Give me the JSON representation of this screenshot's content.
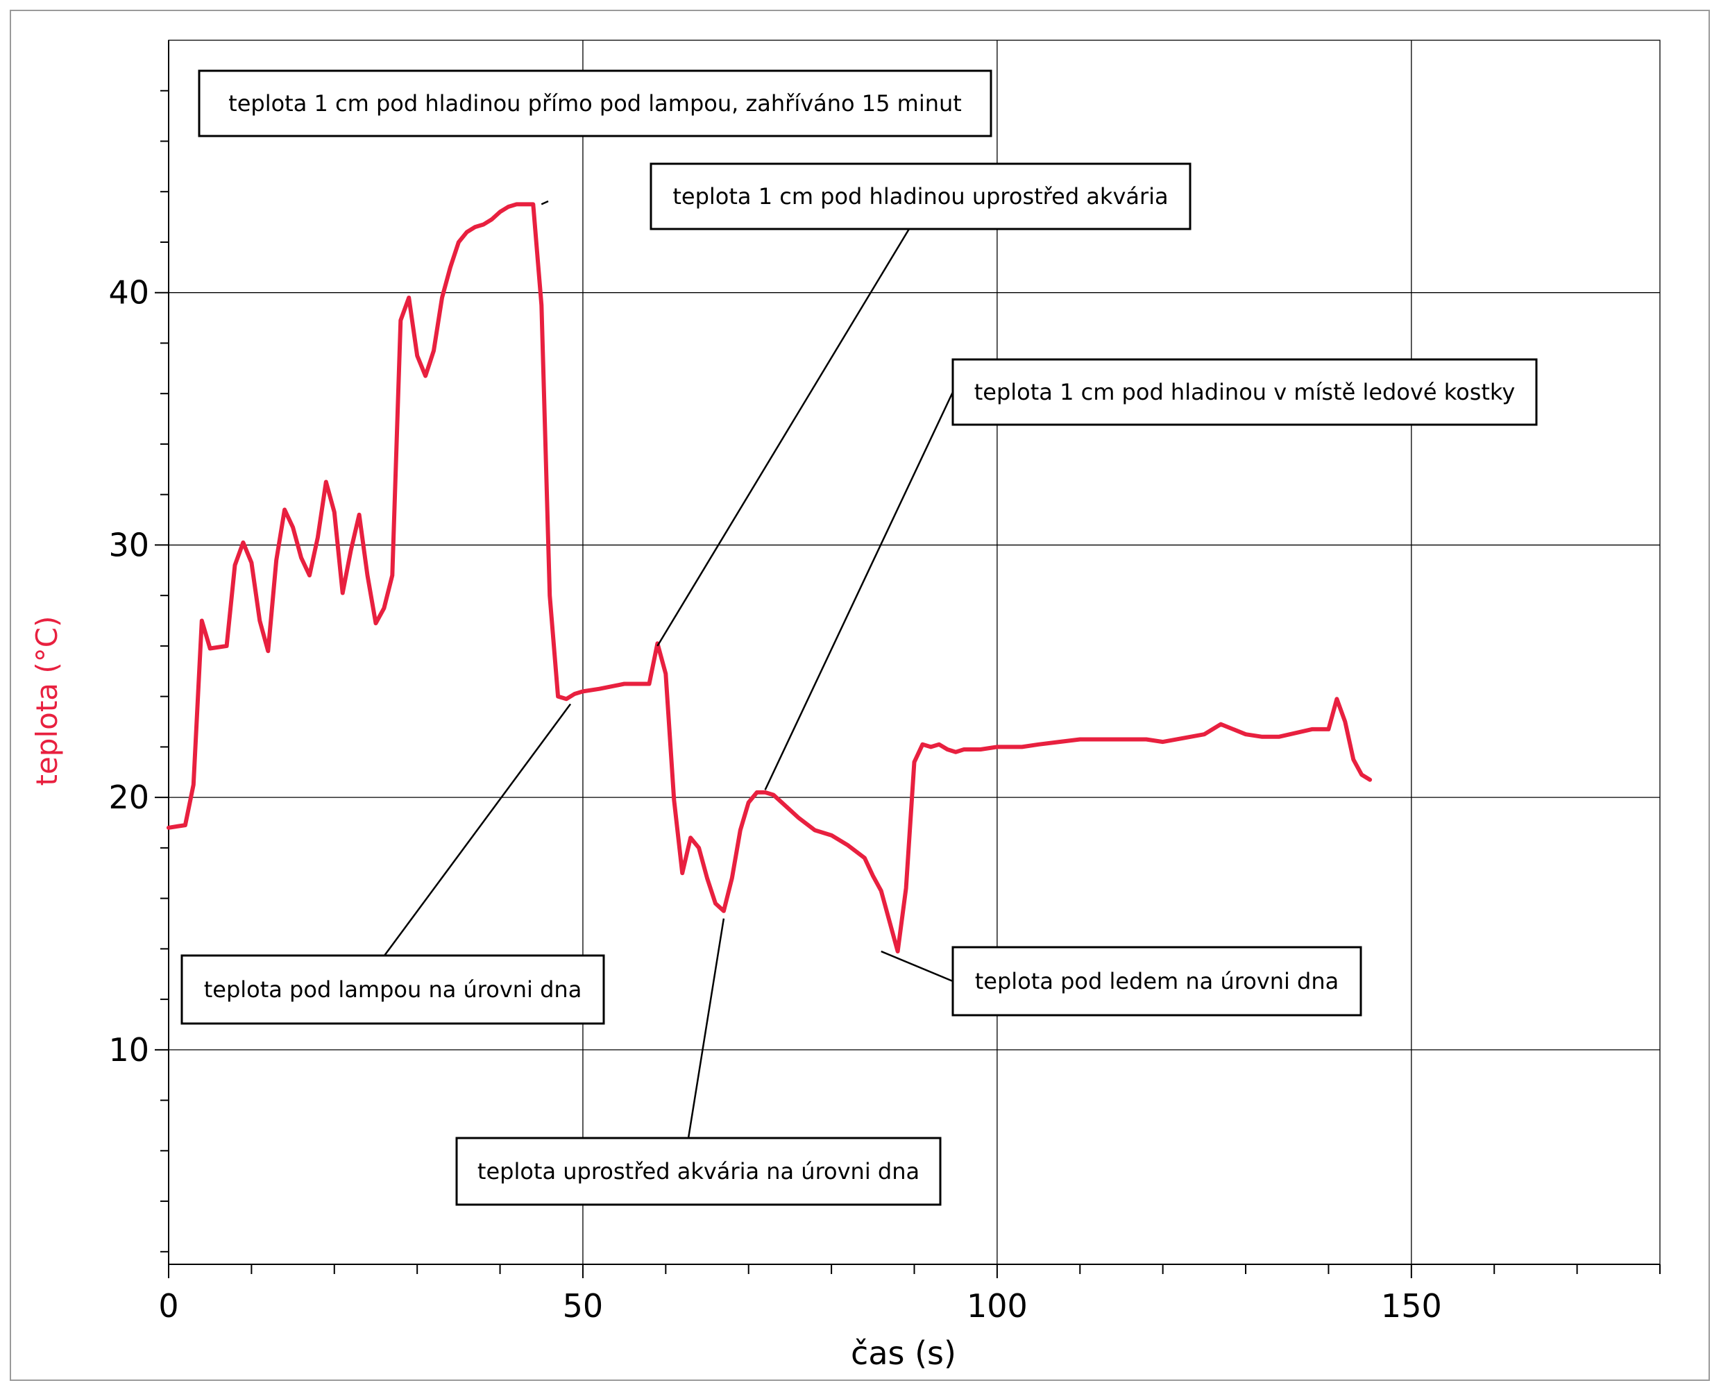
{
  "chart_data": {
    "type": "line",
    "title": "",
    "xlabel": "čas (s)",
    "ylabel": "teplota (°C)",
    "xlim": [
      0,
      180
    ],
    "ylim": [
      1.5,
      50
    ],
    "x_ticks": [
      0,
      50,
      100,
      150
    ],
    "y_ticks": [
      10,
      20,
      30,
      40
    ],
    "x_tick_labels": [
      "0",
      "50",
      "100",
      "150"
    ],
    "y_tick_labels": [
      "10",
      "20",
      "30",
      "40"
    ],
    "grid": true,
    "line_color": "#e8203f",
    "series": [
      {
        "x": [
          0,
          2,
          3,
          4,
          5,
          7,
          8,
          9,
          10,
          11,
          12,
          13,
          14,
          15,
          16,
          17,
          18,
          19,
          20,
          21,
          22,
          23,
          24,
          25,
          26,
          27,
          28,
          29,
          30,
          31,
          32,
          33,
          34,
          35,
          36,
          37,
          38,
          39,
          40,
          41,
          42,
          43,
          44,
          45,
          46,
          47,
          48,
          49,
          50,
          52,
          55,
          58,
          59,
          60,
          61,
          62,
          63,
          64,
          65,
          66,
          67,
          68,
          69,
          70,
          71,
          72,
          73,
          74,
          76,
          78,
          80,
          82,
          84,
          85,
          86,
          88,
          89,
          90,
          91,
          92,
          93,
          94,
          95,
          96,
          98,
          100,
          103,
          105,
          110,
          115,
          117,
          118,
          120,
          125,
          127,
          130,
          132,
          134,
          138,
          140,
          141,
          142,
          143,
          144,
          145
        ],
        "values": [
          18.8,
          18.9,
          20.5,
          27.0,
          25.9,
          26.0,
          29.2,
          30.1,
          29.3,
          27.0,
          25.8,
          29.4,
          31.4,
          30.7,
          29.5,
          28.8,
          30.3,
          32.5,
          31.3,
          28.1,
          29.8,
          31.2,
          28.8,
          26.9,
          27.5,
          28.8,
          38.9,
          39.8,
          37.5,
          36.7,
          37.7,
          39.8,
          41.0,
          42.0,
          42.4,
          42.6,
          42.7,
          42.9,
          43.2,
          43.4,
          43.5,
          43.5,
          43.5,
          39.5,
          28.0,
          24.0,
          23.9,
          24.1,
          24.2,
          24.3,
          24.5,
          24.5,
          26.1,
          24.9,
          19.9,
          17.0,
          18.4,
          18.0,
          16.8,
          15.8,
          15.5,
          16.8,
          18.7,
          19.8,
          20.2,
          20.2,
          20.1,
          19.8,
          19.2,
          18.7,
          18.5,
          18.1,
          17.6,
          16.9,
          16.3,
          13.9,
          16.4,
          21.4,
          22.1,
          22.0,
          22.1,
          21.9,
          21.8,
          21.9,
          21.9,
          22.0,
          22.0,
          22.1,
          22.3,
          22.3,
          22.3,
          22.3,
          22.2,
          22.5,
          22.9,
          22.5,
          22.4,
          22.4,
          22.7,
          22.7,
          23.9,
          23.0,
          21.5,
          20.9,
          20.7
        ]
      }
    ],
    "annotations": [
      {
        "text": "teplota 1 cm pod  hladinou přímo pod lampou, zahříváno 15 minut",
        "x": 45,
        "y": 43.5
      },
      {
        "text": "teplota 1 cm pod hladinou uprostřed akvária",
        "x": 59,
        "y": 26.0
      },
      {
        "text": "teplota 1 cm pod hladinou v místě ledové kostky",
        "x": 72,
        "y": 20.3
      },
      {
        "text": "teplota pod lampou na úrovni dna",
        "x": 48.5,
        "y": 23.7
      },
      {
        "text": "teplota pod ledem na úrovni dna",
        "x": 86,
        "y": 13.9
      },
      {
        "text": "teplota uprostřed akvária na úrovni dna",
        "x": 67,
        "y": 15.2
      }
    ]
  }
}
